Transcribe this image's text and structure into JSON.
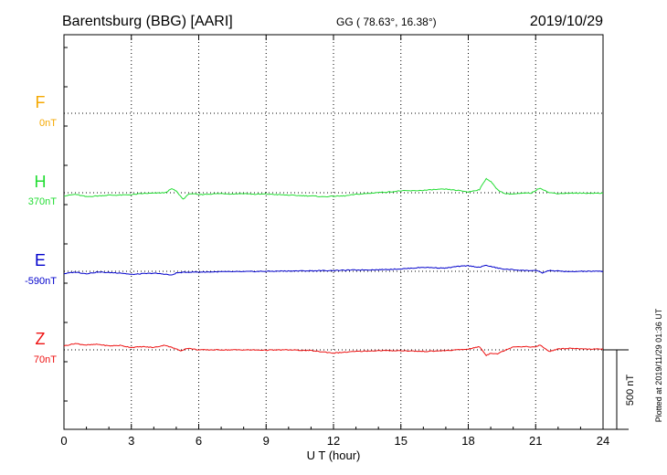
{
  "header": {
    "station": "Barentsburg (BBG)  [AARI]",
    "coords": "GG ( 78.63°,  16.38°)",
    "date": "2019/10/29"
  },
  "side_note": "Plotted at 2019/11/29 01:36 UT",
  "chart_data": {
    "type": "line",
    "xlabel": "U T (hour)",
    "xlim": [
      0,
      24
    ],
    "xticks": [
      0,
      3,
      6,
      9,
      12,
      15,
      18,
      21,
      24
    ],
    "scale_bar_label": "500 nT",
    "scale_bar_nT": 500,
    "series": [
      {
        "name": "F",
        "baseline_label": "0nT",
        "color": "#f5a800",
        "points": []
      },
      {
        "name": "H",
        "baseline_label": "370nT",
        "color": "#22dd33",
        "points": [
          [
            0,
            -20
          ],
          [
            0.5,
            -10
          ],
          [
            1,
            -25
          ],
          [
            1.5,
            -20
          ],
          [
            2,
            -15
          ],
          [
            2.5,
            -15
          ],
          [
            3,
            -12
          ],
          [
            3.5,
            -5
          ],
          [
            4,
            -3
          ],
          [
            4.5,
            0
          ],
          [
            4.8,
            25
          ],
          [
            5,
            10
          ],
          [
            5.3,
            -40
          ],
          [
            5.6,
            -5
          ],
          [
            6,
            -12
          ],
          [
            6.5,
            -8
          ],
          [
            7,
            -5
          ],
          [
            7.5,
            -8
          ],
          [
            8,
            -5
          ],
          [
            8.5,
            -10
          ],
          [
            9,
            -8
          ],
          [
            9.5,
            -12
          ],
          [
            10,
            -15
          ],
          [
            10.5,
            -18
          ],
          [
            11,
            -20
          ],
          [
            11.5,
            -25
          ],
          [
            12,
            -22
          ],
          [
            12.5,
            -20
          ],
          [
            13,
            -10
          ],
          [
            13.5,
            -5
          ],
          [
            14,
            2
          ],
          [
            14.5,
            5
          ],
          [
            15,
            12
          ],
          [
            15.5,
            12
          ],
          [
            16,
            15
          ],
          [
            16.5,
            20
          ],
          [
            17,
            22
          ],
          [
            17.5,
            15
          ],
          [
            18,
            5
          ],
          [
            18.5,
            20
          ],
          [
            18.8,
            90
          ],
          [
            19,
            70
          ],
          [
            19.3,
            20
          ],
          [
            19.6,
            -5
          ],
          [
            20,
            -8
          ],
          [
            20.5,
            -3
          ],
          [
            20.8,
            -2
          ],
          [
            21.2,
            30
          ],
          [
            21.6,
            0
          ],
          [
            22,
            -5
          ],
          [
            22.5,
            -3
          ],
          [
            23,
            -3
          ],
          [
            24,
            -3
          ]
        ]
      },
      {
        "name": "E",
        "baseline_label": "-590nT",
        "color": "#0000cc",
        "points": [
          [
            0,
            -15
          ],
          [
            0.5,
            -5
          ],
          [
            1,
            -15
          ],
          [
            1.5,
            -5
          ],
          [
            2,
            -8
          ],
          [
            2.5,
            -10
          ],
          [
            3,
            -20
          ],
          [
            3.5,
            -15
          ],
          [
            4,
            -12
          ],
          [
            4.5,
            -18
          ],
          [
            4.8,
            -25
          ],
          [
            5,
            -10
          ],
          [
            5.5,
            -5
          ],
          [
            6,
            -5
          ],
          [
            7,
            -3
          ],
          [
            8,
            -2
          ],
          [
            9,
            0
          ],
          [
            10,
            2
          ],
          [
            11,
            3
          ],
          [
            12,
            5
          ],
          [
            13,
            8
          ],
          [
            14,
            10
          ],
          [
            15,
            15
          ],
          [
            16,
            25
          ],
          [
            17,
            20
          ],
          [
            17.5,
            30
          ],
          [
            18,
            35
          ],
          [
            18.5,
            25
          ],
          [
            18.8,
            38
          ],
          [
            19,
            30
          ],
          [
            19.5,
            15
          ],
          [
            20,
            10
          ],
          [
            20.5,
            5
          ],
          [
            21,
            5
          ],
          [
            21.3,
            -10
          ],
          [
            21.6,
            5
          ],
          [
            22,
            2
          ],
          [
            22.5,
            -3
          ],
          [
            23,
            0
          ],
          [
            24,
            0
          ]
        ]
      },
      {
        "name": "Z",
        "baseline_label": "70nT",
        "color": "#ee1111",
        "points": [
          [
            0,
            25
          ],
          [
            0.5,
            40
          ],
          [
            1,
            30
          ],
          [
            1.5,
            35
          ],
          [
            2,
            25
          ],
          [
            2.5,
            28
          ],
          [
            3,
            15
          ],
          [
            3.5,
            20
          ],
          [
            4,
            15
          ],
          [
            4.5,
            30
          ],
          [
            4.8,
            15
          ],
          [
            5.2,
            -5
          ],
          [
            5.5,
            10
          ],
          [
            6,
            0
          ],
          [
            7,
            0
          ],
          [
            8,
            0
          ],
          [
            9,
            -2
          ],
          [
            10,
            0
          ],
          [
            11,
            -5
          ],
          [
            12,
            -20
          ],
          [
            13,
            -10
          ],
          [
            14,
            -5
          ],
          [
            15,
            -5
          ],
          [
            16,
            -10
          ],
          [
            17,
            -5
          ],
          [
            17.5,
            0
          ],
          [
            18,
            5
          ],
          [
            18.5,
            20
          ],
          [
            18.8,
            -35
          ],
          [
            19,
            -20
          ],
          [
            19.3,
            -25
          ],
          [
            19.6,
            -5
          ],
          [
            20,
            20
          ],
          [
            20.5,
            20
          ],
          [
            21,
            18
          ],
          [
            21.2,
            30
          ],
          [
            21.6,
            -10
          ],
          [
            22,
            5
          ],
          [
            22.5,
            10
          ],
          [
            23,
            5
          ],
          [
            24,
            5
          ]
        ]
      }
    ]
  }
}
